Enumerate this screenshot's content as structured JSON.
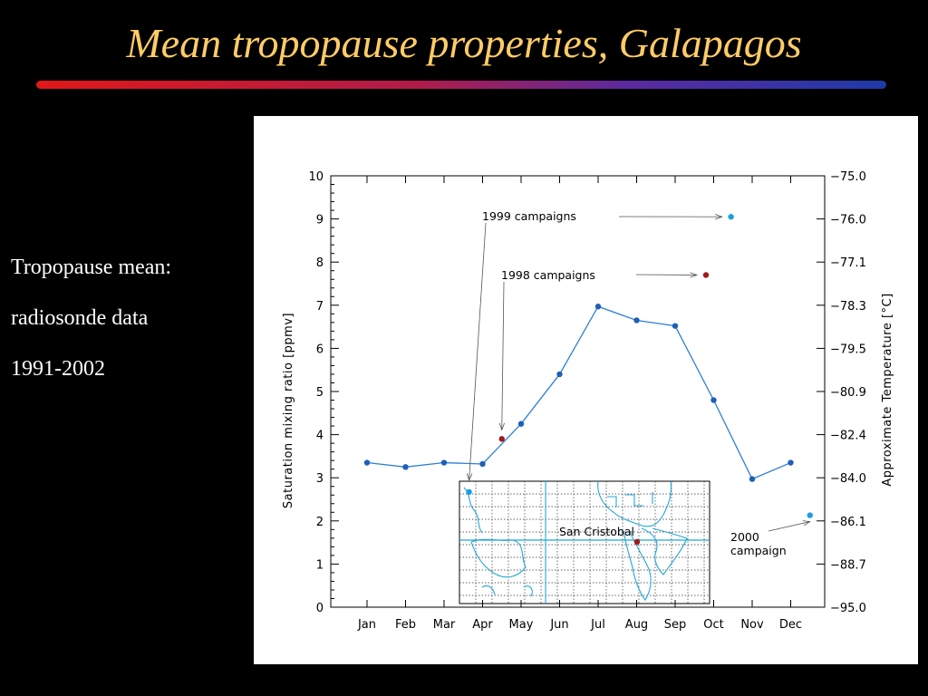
{
  "slide": {
    "title": "Mean tropopause properties, Galapagos",
    "side_text": [
      "Tropopause mean:",
      "radiosonde data",
      "1991-2002"
    ]
  },
  "colors": {
    "title": "#FFCC66",
    "mean_line": "#2f7fd6",
    "mean_point": "#1f5fb8",
    "campaign_1999": "#1a9ee0",
    "campaign_1998": "#a01a1a",
    "campaign_2000": "#1a9ee0",
    "map_coast": "#20a8d8",
    "map_marker": "#a01a1a"
  },
  "chart_data": {
    "type": "line",
    "categories": [
      "Jan",
      "Feb",
      "Mar",
      "Apr",
      "May",
      "Jun",
      "Jul",
      "Aug",
      "Sep",
      "Oct",
      "Nov",
      "Dec"
    ],
    "series": [
      {
        "values": [
          3.35,
          3.25,
          3.35,
          3.32,
          4.25,
          5.4,
          6.97,
          6.65,
          6.52,
          4.8,
          2.97,
          3.35
        ]
      }
    ],
    "campaign_points": [
      {
        "year": "1999",
        "x": 2.65,
        "y": 2.67
      },
      {
        "year": "1999",
        "x": 9.45,
        "y": 9.05
      },
      {
        "year": "1998",
        "x": 3.5,
        "y": 3.9
      },
      {
        "year": "1998",
        "x": 8.8,
        "y": 7.7
      },
      {
        "year": "2000",
        "x": 11.5,
        "y": 2.13
      }
    ],
    "ylabel": "Saturation mixing ratio [ppmv]",
    "ylim": [
      0,
      10
    ],
    "yticks": [
      0,
      1,
      2,
      3,
      4,
      5,
      6,
      7,
      8,
      9,
      10
    ],
    "y2label": "Approximate Temperature [°C]",
    "y2ticks": [
      {
        "at": 0,
        "label": "−95.0"
      },
      {
        "at": 1,
        "label": "−88.7"
      },
      {
        "at": 2,
        "label": "−86.1"
      },
      {
        "at": 3,
        "label": "−84.0"
      },
      {
        "at": 4,
        "label": "−82.4"
      },
      {
        "at": 5,
        "label": "−80.9"
      },
      {
        "at": 6,
        "label": "−79.5"
      },
      {
        "at": 7,
        "label": "−78.3"
      },
      {
        "at": 8,
        "label": "−77.1"
      },
      {
        "at": 9,
        "label": "−76.0"
      },
      {
        "at": 10,
        "label": "−75.0"
      }
    ],
    "annotations": {
      "c1999": "1999 campaigns",
      "c1998": "1998 campaigns",
      "c2000_line1": "2000",
      "c2000_line2": "campaign"
    },
    "inset_map": {
      "label": "San Cristobal"
    }
  }
}
